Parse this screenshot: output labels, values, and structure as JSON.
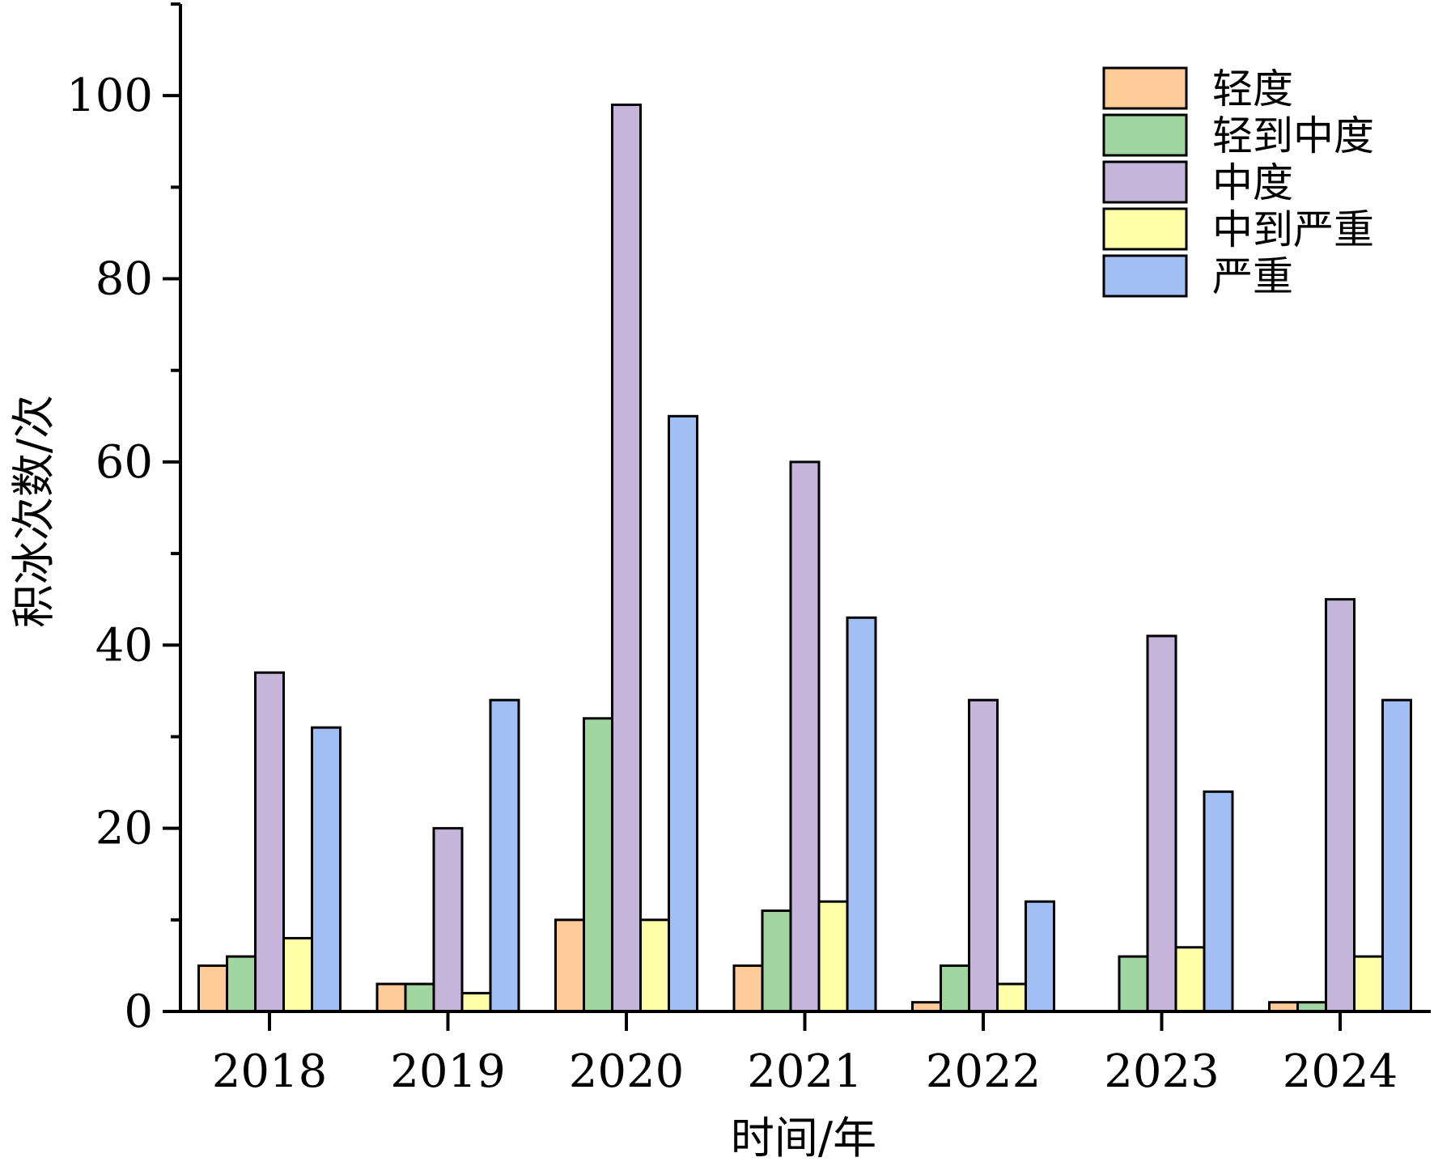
{
  "chart_data": {
    "type": "bar",
    "title": "",
    "xlabel": "时间/年",
    "ylabel": "积冰次数/次",
    "categories": [
      "2018",
      "2019",
      "2020",
      "2021",
      "2022",
      "2023",
      "2024"
    ],
    "ylim": [
      0,
      110
    ],
    "yticks": [
      "0",
      "20",
      "40",
      "60",
      "80",
      "100"
    ],
    "grid": false,
    "legend_position": "top-right",
    "series": [
      {
        "name": "轻度",
        "color": "#FFCC99",
        "values": [
          5,
          3,
          10,
          5,
          1,
          0,
          1
        ]
      },
      {
        "name": "轻到中度",
        "color": "#A2D6A0",
        "values": [
          6,
          3,
          32,
          11,
          5,
          6,
          1
        ]
      },
      {
        "name": "中度",
        "color": "#C6B5DB",
        "values": [
          37,
          20,
          99,
          60,
          34,
          41,
          45
        ]
      },
      {
        "name": "中到严重",
        "color": "#FFFFA8",
        "values": [
          8,
          2,
          10,
          12,
          3,
          7,
          6
        ]
      },
      {
        "name": "严重",
        "color": "#A1BFF5",
        "values": [
          31,
          34,
          65,
          43,
          12,
          24,
          34
        ]
      }
    ]
  }
}
